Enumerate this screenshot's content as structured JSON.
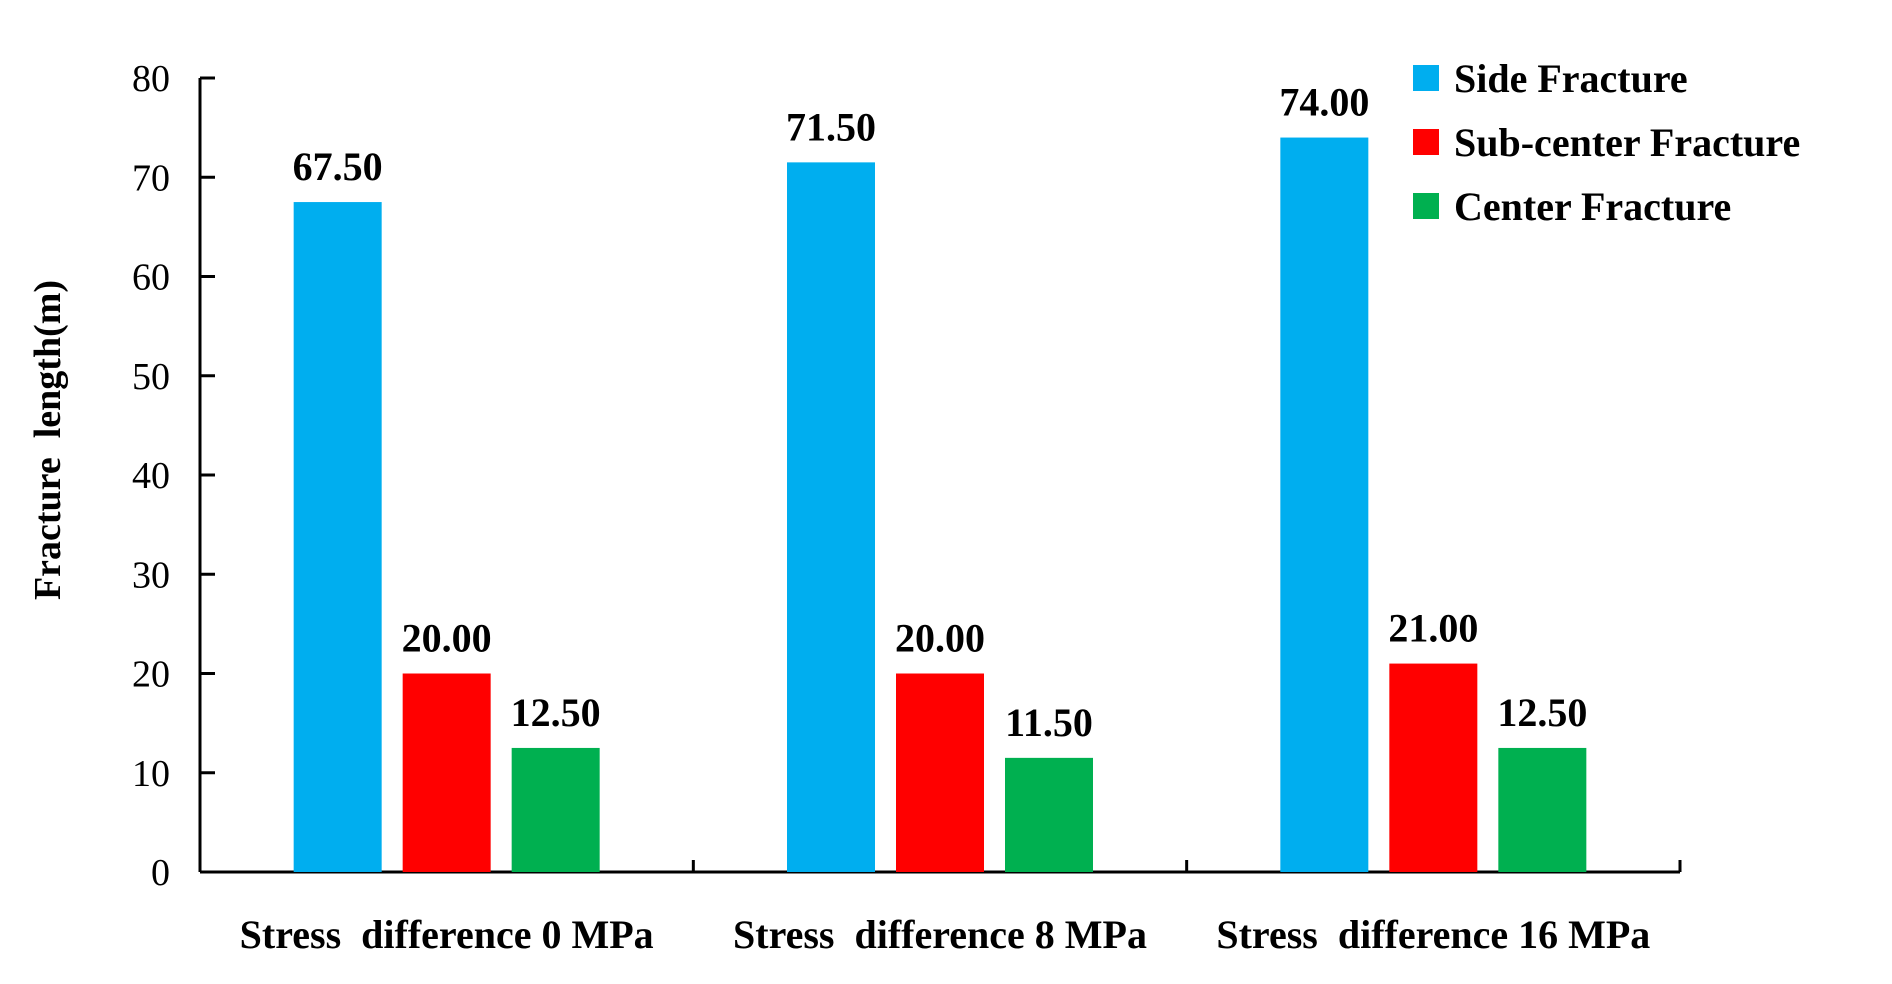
{
  "chart_data": {
    "type": "bar",
    "title": "",
    "xlabel": "",
    "ylabel": "Fracture  length(m)",
    "ylim": [
      0,
      80
    ],
    "yticks": [
      "0",
      "10",
      "20",
      "30",
      "40",
      "50",
      "60",
      "70",
      "80"
    ],
    "categories": [
      "Stress  difference 0 MPa",
      "Stress  difference 8 MPa",
      "Stress  difference 16 MPa"
    ],
    "series": [
      {
        "name": "Side Fracture",
        "color": "#00AEEF",
        "values": [
          67.5,
          71.5,
          74.0
        ],
        "labels": [
          "67.50",
          "71.50",
          "74.00"
        ]
      },
      {
        "name": "Sub-center Fracture",
        "color": "#FF0000",
        "values": [
          20.0,
          20.0,
          21.0
        ],
        "labels": [
          "20.00",
          "20.00",
          "21.00"
        ]
      },
      {
        "name": "Center Fracture",
        "color": "#00B050",
        "values": [
          12.5,
          11.5,
          12.5
        ],
        "labels": [
          "12.50",
          "11.50",
          "12.50"
        ]
      }
    ],
    "legend_position": "top-right",
    "grid": false
  }
}
